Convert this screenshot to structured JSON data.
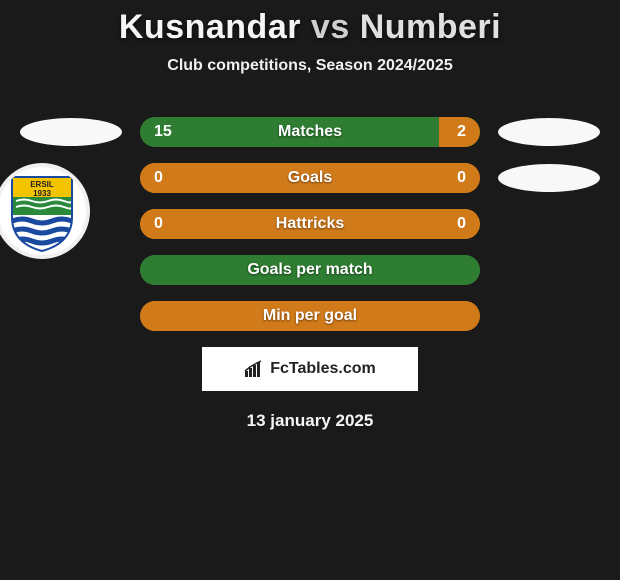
{
  "header": {
    "player1": "Kusnandar",
    "vs": "vs",
    "player2": "Numberi",
    "subtitle": "Club competitions, Season 2024/2025"
  },
  "colors": {
    "background": "#1a1a1a",
    "player1_bar": "#2e7d32",
    "player2_bar": "#d17a1a",
    "oval": "#f8f8f8",
    "text": "#ffffff"
  },
  "bar_style": {
    "track_width": 340,
    "track_height": 30,
    "border_radius": 16,
    "label_fontsize": 16,
    "value_fontsize": 16
  },
  "stats": [
    {
      "label": "Matches",
      "left_value": "15",
      "right_value": "2",
      "left_pct": 88,
      "right_pct": 12,
      "left_color": "#2e7d32",
      "right_color": "#d17a1a",
      "show_left_oval": true,
      "show_right_oval": true
    },
    {
      "label": "Goals",
      "left_value": "0",
      "right_value": "0",
      "left_pct": 100,
      "right_pct": 0,
      "left_color": "#d17a1a",
      "right_color": "#d17a1a",
      "show_left_oval": false,
      "show_right_oval": true
    },
    {
      "label": "Hattricks",
      "left_value": "0",
      "right_value": "0",
      "left_pct": 100,
      "right_pct": 0,
      "left_color": "#d17a1a",
      "right_color": "#d17a1a",
      "show_left_oval": false,
      "show_right_oval": false
    },
    {
      "label": "Goals per match",
      "left_value": "",
      "right_value": "",
      "left_pct": 100,
      "right_pct": 0,
      "left_color": "#2e7d32",
      "right_color": "#2e7d32",
      "show_left_oval": false,
      "show_right_oval": false
    },
    {
      "label": "Min per goal",
      "left_value": "",
      "right_value": "",
      "left_pct": 100,
      "right_pct": 0,
      "left_color": "#d17a1a",
      "right_color": "#d17a1a",
      "show_left_oval": false,
      "show_right_oval": false
    }
  ],
  "footer": {
    "brand": "FcTables.com",
    "date": "13 january 2025"
  },
  "club_badge": {
    "top_text": "ERSIL",
    "year": "1933",
    "top_color": "#f5c400",
    "mid_color": "#2a8a3a",
    "stripe_color": "#1a4aa0",
    "bg_color": "#ffffff"
  }
}
